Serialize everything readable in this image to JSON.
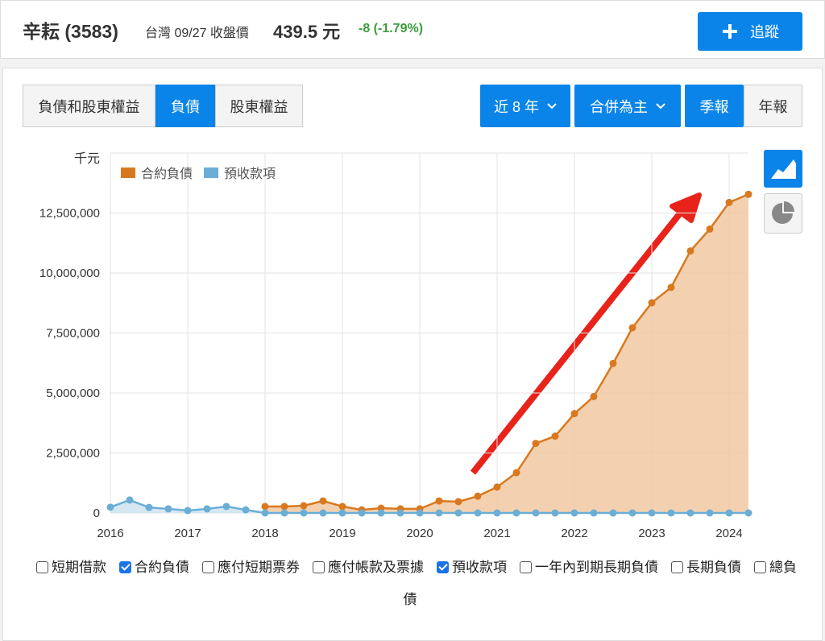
{
  "header": {
    "name": "辛耘 (3583)",
    "market_date": "台灣 09/27 收盤價",
    "price": "439.5 元",
    "change": "-8 (-1.79%)",
    "follow_button": "追蹤"
  },
  "tabs": [
    {
      "label": "負債和股東權益",
      "active": false
    },
    {
      "label": "負債",
      "active": true
    },
    {
      "label": "股東權益",
      "active": false
    }
  ],
  "filters": [
    {
      "label": "近 8 年",
      "dropdown": true,
      "active": true
    },
    {
      "label": "合併為主",
      "dropdown": true,
      "active": true
    },
    {
      "label": "季報",
      "dropdown": false,
      "active": true
    },
    {
      "label": "年報",
      "dropdown": false,
      "active": false
    }
  ],
  "chart_data": {
    "type": "area",
    "y_unit": "千元",
    "categories": [
      "2016",
      null,
      null,
      null,
      "2017",
      null,
      null,
      null,
      "2018",
      null,
      null,
      null,
      "2019",
      null,
      null,
      null,
      "2020",
      null,
      null,
      null,
      "2021",
      null,
      null,
      null,
      "2022",
      null,
      null,
      null,
      "2023",
      null,
      null,
      null,
      "2024",
      null
    ],
    "series": [
      {
        "name": "合約負債",
        "color": "#d9791f",
        "fill": "#f1c9a2",
        "values": [
          null,
          null,
          null,
          null,
          null,
          null,
          null,
          null,
          270000,
          270000,
          300000,
          500000,
          270000,
          130000,
          200000,
          170000,
          170000,
          500000,
          470000,
          700000,
          1080000,
          1680000,
          2900000,
          3200000,
          4140000,
          4850000,
          6230000,
          7720000,
          8760000,
          9400000,
          10920000,
          11830000,
          12940000,
          13280000
        ]
      },
      {
        "name": "預收款項",
        "color": "#6aaed6",
        "fill": "#cfe3f1",
        "values": [
          240000,
          540000,
          230000,
          170000,
          100000,
          170000,
          270000,
          130000,
          0,
          0,
          0,
          0,
          0,
          0,
          0,
          0,
          0,
          0,
          0,
          0,
          0,
          0,
          0,
          0,
          0,
          0,
          0,
          0,
          0,
          0,
          0,
          0,
          0,
          0
        ]
      }
    ],
    "ylim": [
      0,
      15000000
    ],
    "yticks": [
      0,
      {
        "value": 2500000,
        "label": "2,500,000"
      },
      {
        "value": 5000000,
        "label": "5,000,000"
      },
      {
        "value": 7500000,
        "label": "7,500,000"
      },
      {
        "value": 10000000,
        "label": "10,000,000"
      },
      {
        "value": 12500000,
        "label": "12,500,000"
      }
    ],
    "grid": true,
    "legend": "top-left"
  },
  "options": [
    {
      "label": "短期借款",
      "checked": false
    },
    {
      "label": "合約負債",
      "checked": true
    },
    {
      "label": "應付短期票券",
      "checked": false
    },
    {
      "label": "應付帳款及票據",
      "checked": false
    },
    {
      "label": "預收款項",
      "checked": true
    },
    {
      "label": "一年內到期長期負債",
      "checked": false
    },
    {
      "label": "長期負債",
      "checked": false
    },
    {
      "label": "總負債",
      "checked": false
    }
  ]
}
